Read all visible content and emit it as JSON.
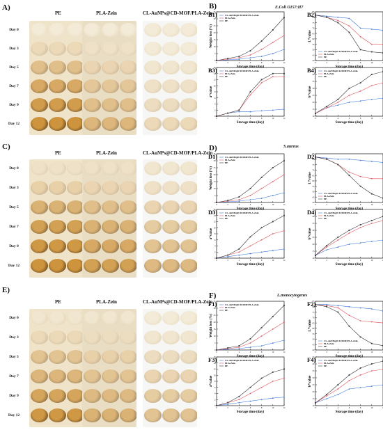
{
  "colors": {
    "cl": "#3b78d8",
    "pla": "#e0505a",
    "pe": "#333333",
    "bg_cl": "#f6f6f4",
    "bg_pla": "#e9ddc3",
    "bg_pe": "#efe4c9"
  },
  "photo_panels": [
    {
      "letter": "A)",
      "headers": [
        "PE",
        "PLA-Zein",
        "CL-AuNPs@CD-MOF/PLA-Zein"
      ],
      "days": [
        "Day 0",
        "Day 3",
        "Day 5",
        "Day 7",
        "Day 9",
        "Day 12"
      ],
      "spoilage": {
        "pe": [
          0,
          0.2,
          0.5,
          0.75,
          0.9,
          1
        ],
        "pla": [
          0,
          0.1,
          0.25,
          0.4,
          0.5,
          0.6
        ],
        "cl": [
          0,
          0,
          0.05,
          0.1,
          0.15,
          0.2
        ]
      }
    },
    {
      "letter": "C)",
      "headers": [
        "PE",
        "PLA-Zein",
        "CL-AuNPs@CD-MOF/PLA-Zein"
      ],
      "days": [
        "Day 0",
        "Day 3",
        "Day 5",
        "Day 7",
        "Day 9",
        "Day 12"
      ],
      "spoilage": {
        "pe": [
          0.1,
          0.3,
          0.65,
          0.85,
          0.95,
          1
        ],
        "pla": [
          0.1,
          0.25,
          0.5,
          0.65,
          0.75,
          0.85
        ],
        "cl": [
          0.05,
          0.1,
          0.25,
          0.35,
          0.45,
          0.55
        ]
      }
    },
    {
      "letter": "E)",
      "headers": [
        "PE",
        "PLA-Zein",
        "CL-AuNPs@CD-MOF/PLA-Zein"
      ],
      "days": [
        "Day 0",
        "Day 3",
        "Day 5",
        "Day 7",
        "Day 9",
        "Day 12"
      ],
      "spoilage": {
        "pe": [
          0.05,
          0.2,
          0.45,
          0.6,
          0.8,
          0.95
        ],
        "pla": [
          0.05,
          0.15,
          0.3,
          0.45,
          0.55,
          0.65
        ],
        "cl": [
          0,
          0.05,
          0.15,
          0.25,
          0.35,
          0.45
        ]
      }
    }
  ],
  "chart_groups": [
    {
      "letter": "B)",
      "organism": "E.Coli O157:H7"
    },
    {
      "letter": "D)",
      "organism": "S.aureus"
    },
    {
      "letter": "F)",
      "organism": "L.monocytogenes"
    }
  ],
  "chart_data": [
    {
      "id": "B1",
      "label": "B1)",
      "type": "line",
      "ylabel": "Weight loss (%)",
      "xlabel": "Storage time (day)",
      "legend": "top-left",
      "xlim": [
        0,
        12
      ],
      "ylim": [
        0,
        35
      ],
      "series": [
        {
          "name": "CL-AuNPs@CD-MOF/PLA-Zein",
          "x": [
            0,
            2,
            4,
            6,
            8,
            10,
            12
          ],
          "y": [
            0,
            0.5,
            1,
            2,
            3,
            5,
            8
          ]
        },
        {
          "name": "PLA-Zein",
          "x": [
            0,
            2,
            4,
            6,
            8,
            10,
            12
          ],
          "y": [
            0,
            1,
            2,
            4,
            8,
            13,
            18
          ]
        },
        {
          "name": "PE",
          "x": [
            0,
            2,
            4,
            6,
            8,
            10,
            12
          ],
          "y": [
            0,
            1.5,
            3,
            7,
            14,
            22,
            31
          ]
        }
      ]
    },
    {
      "id": "B2",
      "label": "B2)",
      "type": "line",
      "ylabel": "L*value",
      "xlabel": "Storage time (day)",
      "legend": "bottom-left",
      "xlim": [
        0,
        12
      ],
      "ylim": [
        40,
        85
      ],
      "series": [
        {
          "name": "CL-AuNPs@CD-MOF/PLA-Zein",
          "x": [
            0,
            2,
            4,
            6,
            8,
            10,
            12
          ],
          "y": [
            82,
            81,
            80,
            79,
            70,
            69,
            68
          ]
        },
        {
          "name": "PLA-Zein",
          "x": [
            0,
            2,
            4,
            6,
            8,
            10,
            12
          ],
          "y": [
            82,
            80,
            77,
            72,
            62,
            55,
            55
          ]
        },
        {
          "name": "PE",
          "x": [
            0,
            2,
            4,
            6,
            8,
            10,
            12
          ],
          "y": [
            82,
            80,
            75,
            66,
            50,
            48,
            47
          ]
        }
      ]
    },
    {
      "id": "B3",
      "label": "B3)",
      "type": "line",
      "ylabel": "a*value",
      "xlabel": "Storage time (day)",
      "legend": "top-left",
      "xlim": [
        0,
        12
      ],
      "ylim": [
        0,
        16
      ],
      "series": [
        {
          "name": "CL-AuNPs@CD-MOF/PLA-Zein",
          "x": [
            0,
            2,
            4,
            6,
            8,
            10,
            12
          ],
          "y": [
            0,
            1,
            1.5,
            1.5,
            1.8,
            2,
            2.3
          ]
        },
        {
          "name": "PLA-Zein",
          "x": [
            0,
            2,
            4,
            6,
            8,
            10,
            12
          ],
          "y": [
            0,
            1,
            2,
            7,
            11,
            13,
            13
          ]
        },
        {
          "name": "PE",
          "x": [
            0,
            2,
            4,
            6,
            8,
            10,
            12
          ],
          "y": [
            0,
            1,
            2,
            8,
            12,
            14,
            14
          ]
        }
      ]
    },
    {
      "id": "B4",
      "label": "B4)",
      "type": "line",
      "ylabel": "b*value",
      "xlabel": "Storage time (day)",
      "legend": "top-left",
      "xlim": [
        0,
        12
      ],
      "ylim": [
        10,
        45
      ],
      "series": [
        {
          "name": "CL-AuNPs@CD-MOF/PLA-Zein",
          "x": [
            0,
            2,
            4,
            6,
            8,
            10,
            12
          ],
          "y": [
            12,
            16,
            18,
            20,
            21,
            22,
            23
          ]
        },
        {
          "name": "PLA-Zein",
          "x": [
            0,
            2,
            4,
            6,
            8,
            10,
            12
          ],
          "y": [
            12,
            16,
            20,
            25,
            28,
            32,
            34
          ]
        },
        {
          "name": "PE",
          "x": [
            0,
            2,
            4,
            6,
            8,
            10,
            12
          ],
          "y": [
            12,
            17,
            22,
            30,
            34,
            40,
            42
          ]
        }
      ]
    },
    {
      "id": "D1",
      "label": "D1)",
      "type": "line",
      "ylabel": "Weight loss (%)",
      "xlabel": "Storage time (day)",
      "legend": "top-left",
      "xlim": [
        0,
        12
      ],
      "ylim": [
        0,
        35
      ],
      "series": [
        {
          "name": "CL-AuNPs@CD-MOF/PLA-Zein",
          "x": [
            0,
            2,
            4,
            6,
            8,
            10,
            12
          ],
          "y": [
            0,
            0.5,
            1,
            2,
            3,
            5,
            7
          ]
        },
        {
          "name": "PLA-Zein",
          "x": [
            0,
            2,
            4,
            6,
            8,
            10,
            12
          ],
          "y": [
            0,
            1,
            2,
            5,
            10,
            15,
            20
          ]
        },
        {
          "name": "PE",
          "x": [
            0,
            2,
            4,
            6,
            8,
            10,
            12
          ],
          "y": [
            0,
            1.5,
            4,
            10,
            18,
            25,
            30
          ]
        }
      ]
    },
    {
      "id": "D2",
      "label": "D2)",
      "type": "line",
      "ylabel": "L*value",
      "xlabel": "Storage time (day)",
      "legend": "bottom-left",
      "xlim": [
        0,
        12
      ],
      "ylim": [
        40,
        85
      ],
      "series": [
        {
          "name": "CL-AuNPs@CD-MOF/PLA-Zein",
          "x": [
            0,
            2,
            4,
            6,
            8,
            10,
            12
          ],
          "y": [
            82,
            81,
            80,
            80,
            79,
            78,
            77
          ]
        },
        {
          "name": "PLA-Zein",
          "x": [
            0,
            2,
            4,
            6,
            8,
            10,
            12
          ],
          "y": [
            82,
            80,
            75,
            68,
            64,
            62,
            62
          ]
        },
        {
          "name": "PE",
          "x": [
            0,
            2,
            4,
            6,
            8,
            10,
            12
          ],
          "y": [
            82,
            80,
            75,
            65,
            55,
            48,
            44
          ]
        }
      ]
    },
    {
      "id": "D3",
      "label": "D3)",
      "type": "line",
      "ylabel": "a*value",
      "xlabel": "Storage time (day)",
      "legend": "top-left",
      "xlim": [
        0,
        12
      ],
      "ylim": [
        0,
        16
      ],
      "series": [
        {
          "name": "CL-AuNPs@CD-MOF/PLA-Zein",
          "x": [
            0,
            2,
            4,
            6,
            8,
            10,
            12
          ],
          "y": [
            0,
            0.5,
            1,
            1.5,
            2,
            2.5,
            3
          ]
        },
        {
          "name": "PLA-Zein",
          "x": [
            0,
            2,
            4,
            6,
            8,
            10,
            12
          ],
          "y": [
            0,
            1,
            2,
            4,
            6,
            8,
            9
          ]
        },
        {
          "name": "PE",
          "x": [
            0,
            2,
            4,
            6,
            8,
            10,
            12
          ],
          "y": [
            0,
            1,
            3,
            7,
            10,
            12,
            14
          ]
        }
      ]
    },
    {
      "id": "D4",
      "label": "D4)",
      "type": "line",
      "ylabel": "b*value",
      "xlabel": "Storage time (day)",
      "legend": "top-left",
      "xlim": [
        0,
        12
      ],
      "ylim": [
        10,
        45
      ],
      "series": [
        {
          "name": "CL-AuNPs@CD-MOF/PLA-Zein",
          "x": [
            0,
            2,
            4,
            6,
            8,
            10,
            12
          ],
          "y": [
            12,
            16,
            18,
            20,
            21,
            22,
            23
          ]
        },
        {
          "name": "PLA-Zein",
          "x": [
            0,
            2,
            4,
            6,
            8,
            10,
            12
          ],
          "y": [
            12,
            18,
            23,
            28,
            32,
            35,
            37
          ]
        },
        {
          "name": "PE",
          "x": [
            0,
            2,
            4,
            6,
            8,
            10,
            12
          ],
          "y": [
            12,
            19,
            25,
            30,
            34,
            37,
            40
          ]
        }
      ]
    },
    {
      "id": "F1",
      "label": "F1)",
      "type": "line",
      "ylabel": "Weight loss (%)",
      "xlabel": "Storage time (day)",
      "legend": "top-left",
      "xlim": [
        0,
        12
      ],
      "ylim": [
        0,
        35
      ],
      "series": [
        {
          "name": "CL-AuNPs@CD-MOF/PLA-Zein",
          "x": [
            0,
            2,
            4,
            6,
            8,
            10,
            12
          ],
          "y": [
            0,
            0.5,
            1,
            2,
            3,
            5,
            7
          ]
        },
        {
          "name": "PLA-Zein",
          "x": [
            0,
            2,
            4,
            6,
            8,
            10,
            12
          ],
          "y": [
            0,
            1,
            2,
            5,
            10,
            15,
            20
          ]
        },
        {
          "name": "PE",
          "x": [
            0,
            2,
            4,
            6,
            8,
            10,
            12
          ],
          "y": [
            0,
            1.5,
            3,
            8,
            16,
            24,
            32
          ]
        }
      ]
    },
    {
      "id": "F2",
      "label": "F2)",
      "type": "line",
      "ylabel": "L*value",
      "xlabel": "Storage time (day)",
      "legend": "bottom-left",
      "xlim": [
        0,
        12
      ],
      "ylim": [
        40,
        85
      ],
      "series": [
        {
          "name": "CL-AuNPs@CD-MOF/PLA-Zein",
          "x": [
            0,
            2,
            4,
            6,
            8,
            10,
            12
          ],
          "y": [
            82,
            82,
            81,
            80,
            79,
            78,
            76
          ]
        },
        {
          "name": "PLA-Zein",
          "x": [
            0,
            2,
            4,
            6,
            8,
            10,
            12
          ],
          "y": [
            82,
            81,
            79,
            72,
            67,
            66,
            65
          ]
        },
        {
          "name": "PE",
          "x": [
            0,
            2,
            4,
            6,
            8,
            10,
            12
          ],
          "y": [
            82,
            80,
            75,
            62,
            52,
            46,
            44
          ]
        }
      ]
    },
    {
      "id": "F3",
      "label": "F3)",
      "type": "line",
      "ylabel": "a*value",
      "xlabel": "Storage time (day)",
      "legend": "top-left",
      "xlim": [
        0,
        12
      ],
      "ylim": [
        0,
        16
      ],
      "series": [
        {
          "name": "CL-AuNPs@CD-MOF/PLA-Zein",
          "x": [
            0,
            2,
            4,
            6,
            8,
            10,
            12
          ],
          "y": [
            0,
            0.5,
            1,
            1.5,
            2,
            2.5,
            2.8
          ]
        },
        {
          "name": "PLA-Zein",
          "x": [
            0,
            2,
            4,
            6,
            8,
            10,
            12
          ],
          "y": [
            0,
            1,
            2,
            4,
            6,
            8,
            9
          ]
        },
        {
          "name": "PE",
          "x": [
            0,
            2,
            4,
            6,
            8,
            10,
            12
          ],
          "y": [
            0,
            1,
            3,
            6,
            9,
            11,
            12
          ]
        }
      ]
    },
    {
      "id": "F4",
      "label": "F4)",
      "type": "line",
      "ylabel": "b*value",
      "xlabel": "Storage time (day)",
      "legend": "top-left",
      "xlim": [
        0,
        12
      ],
      "ylim": [
        10,
        45
      ],
      "series": [
        {
          "name": "CL-AuNPs@CD-MOF/PLA-Zein",
          "x": [
            0,
            2,
            4,
            6,
            8,
            10,
            12
          ],
          "y": [
            12,
            15,
            18,
            22,
            23,
            24,
            25
          ]
        },
        {
          "name": "PLA-Zein",
          "x": [
            0,
            2,
            4,
            6,
            8,
            10,
            12
          ],
          "y": [
            12,
            17,
            22,
            28,
            32,
            35,
            36
          ]
        },
        {
          "name": "PE",
          "x": [
            0,
            2,
            4,
            6,
            8,
            10,
            12
          ],
          "y": [
            12,
            18,
            25,
            32,
            37,
            40,
            42
          ]
        }
      ]
    }
  ]
}
